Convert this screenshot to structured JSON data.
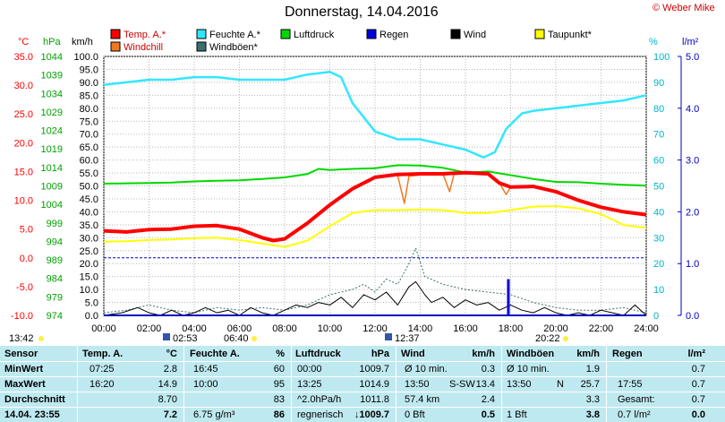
{
  "header": {
    "title": "Donnerstag, 14.04.2016",
    "copyright": "© Weber Mike"
  },
  "legend": [
    {
      "label": "Temp. A.*",
      "color": "#ff0000"
    },
    {
      "label": "Feuchte A.*",
      "color": "#33e6ff"
    },
    {
      "label": "Luftdruck",
      "color": "#00d800"
    },
    {
      "label": "Regen",
      "color": "#0000e0"
    },
    {
      "label": "Wind",
      "color": "#000000"
    },
    {
      "label": "Taupunkt*",
      "color": "#ffff00"
    },
    {
      "label": "Windchill",
      "color": "#f07820"
    },
    {
      "label": "Windböen*",
      "color": "#3c6e6e"
    }
  ],
  "axis_units": {
    "temp": "°C",
    "pressure": "hPa",
    "wind": "km/h",
    "humidity": "%",
    "rain": "l/m²"
  },
  "markers": {
    "sunrise_left": "13:42",
    "sun_t1": "02:53",
    "sun_t2": "06:40",
    "sun_t3": "12:37",
    "sun_t4": "20:22"
  },
  "chart_data": {
    "type": "line",
    "title": "Donnerstag, 14.04.2016",
    "x_unit": "hours",
    "xlim": [
      0,
      24
    ],
    "x_ticks": [
      "00:00",
      "02:00",
      "04:00",
      "06:00",
      "08:00",
      "10:00",
      "12:00",
      "14:00",
      "16:00",
      "18:00",
      "20:00",
      "22:00",
      "24:00"
    ],
    "axes": {
      "temp": {
        "label": "°C",
        "ylim": [
          -10,
          35
        ],
        "ticks": [
          "35.0",
          "30.0",
          "25.0",
          "20.0",
          "15.0",
          "10.0",
          "5.0",
          "0.0",
          "-5.0",
          "-10.0"
        ],
        "color": "#ff0000"
      },
      "pressure": {
        "label": "hPa",
        "ylim": [
          974,
          1044
        ],
        "ticks": [
          "1044",
          "1039",
          "1034",
          "1029",
          "1024",
          "1019",
          "1014",
          "1009",
          "1004",
          "999",
          "994",
          "989",
          "984",
          "979",
          "974"
        ],
        "color": "#00b000"
      },
      "wind": {
        "label": "km/h",
        "ylim": [
          0,
          100
        ],
        "ticks": [
          "100.0",
          "95.0",
          "90.0",
          "85.0",
          "80.0",
          "75.0",
          "70.0",
          "65.0",
          "60.0",
          "55.0",
          "50.0",
          "45.0",
          "40.0",
          "35.0",
          "30.0",
          "25.0",
          "20.0",
          "15.0",
          "10.0",
          "5.0",
          "0.0"
        ],
        "color": "#000000"
      },
      "humidity": {
        "label": "%",
        "ylim": [
          0,
          100
        ],
        "ticks": [
          "100",
          "90",
          "80",
          "70",
          "60",
          "50",
          "40",
          "30",
          "20",
          "10",
          "0"
        ],
        "color": "#00c8c8"
      },
      "rain": {
        "label": "l/m²",
        "ylim": [
          0,
          5
        ],
        "ticks": [
          "5.0",
          "4.0",
          "3.0",
          "2.0",
          "1.0",
          "0.0"
        ],
        "color": "#0000c0"
      }
    },
    "series": [
      {
        "name": "Temp. A.*",
        "axis": "temp",
        "color": "#ff0000",
        "x": [
          0,
          1,
          2,
          3,
          4,
          5,
          6,
          7,
          7.5,
          8,
          9,
          10,
          11,
          12,
          13,
          14,
          15,
          16,
          17,
          17.5,
          18,
          19,
          20,
          21,
          22,
          23,
          24
        ],
        "y": [
          4.7,
          4.5,
          4.9,
          5.0,
          5.5,
          5.6,
          5.0,
          3.5,
          3.0,
          3.3,
          6.0,
          9.2,
          12.0,
          14.0,
          14.5,
          14.6,
          14.6,
          14.8,
          14.6,
          13.0,
          12.3,
          12.4,
          11.5,
          10.0,
          8.8,
          8.0,
          7.5
        ]
      },
      {
        "name": "Feuchte A.*",
        "axis": "humidity",
        "color": "#33e6ff",
        "x": [
          0,
          1,
          2,
          3,
          4,
          5,
          6,
          7,
          8,
          9,
          10,
          10.5,
          11,
          12,
          13,
          14,
          15,
          16,
          16.8,
          17.3,
          17.8,
          18.5,
          19,
          20,
          21,
          22,
          23,
          24
        ],
        "y": [
          89,
          90,
          91,
          91,
          92,
          92,
          91,
          91,
          91,
          93,
          94,
          92,
          82,
          71,
          68,
          68,
          66,
          64,
          61,
          63,
          72,
          78,
          79,
          80,
          81,
          82,
          83,
          85
        ]
      },
      {
        "name": "Luftdruck",
        "axis": "pressure",
        "color": "#00d800",
        "x": [
          0,
          1,
          2,
          3,
          4,
          5,
          6,
          7,
          8,
          9,
          9.5,
          10,
          11,
          12,
          13,
          14,
          15,
          16,
          17,
          18,
          19,
          20,
          21,
          22,
          23,
          24
        ],
        "y": [
          1009.6,
          1009.7,
          1009.8,
          1009.9,
          1010.2,
          1010.4,
          1010.5,
          1010.9,
          1011.3,
          1012.2,
          1013.6,
          1013.3,
          1013.6,
          1013.8,
          1014.6,
          1014.5,
          1013.9,
          1012.6,
          1012.9,
          1011.9,
          1010.9,
          1010.1,
          1010.0,
          1009.6,
          1009.3,
          1009.1
        ]
      },
      {
        "name": "Taupunkt*",
        "axis": "temp",
        "color": "#ffff00",
        "x": [
          0,
          1,
          2,
          3,
          4,
          5,
          6,
          7,
          8,
          9,
          10,
          11,
          12,
          13,
          14,
          15,
          16,
          17,
          18,
          19,
          20,
          21,
          22,
          23,
          24
        ],
        "y": [
          2.8,
          2.9,
          3.1,
          3.2,
          3.4,
          3.5,
          3.1,
          2.5,
          1.9,
          3.0,
          5.5,
          7.8,
          8.3,
          8.3,
          8.4,
          8.3,
          7.8,
          7.8,
          8.3,
          8.9,
          9.0,
          8.6,
          7.6,
          5.7,
          5.2
        ]
      },
      {
        "name": "Windchill",
        "axis": "temp",
        "color": "#f07820",
        "x": [
          0,
          1,
          2,
          3,
          4,
          5,
          6,
          7,
          7.5,
          8,
          9,
          10,
          11,
          12,
          13,
          13.3,
          13.5,
          14,
          14.5,
          15,
          15.3,
          15.5,
          16,
          17,
          17.5,
          17.8,
          18,
          19,
          20,
          21,
          22,
          23,
          24
        ],
        "y": [
          4.7,
          4.5,
          4.9,
          5.0,
          5.5,
          5.6,
          5.0,
          3.5,
          3.0,
          3.3,
          6.0,
          9.2,
          12.0,
          14.0,
          14.3,
          9.5,
          14.2,
          14.4,
          14.5,
          14.6,
          11.5,
          14.6,
          14.7,
          14.6,
          13.0,
          11.0,
          12.3,
          12.4,
          11.5,
          10.0,
          8.8,
          8.0,
          7.5
        ]
      },
      {
        "name": "Wind",
        "axis": "wind",
        "color": "#000000",
        "x": [
          0,
          0.8,
          1.5,
          2,
          2.5,
          3,
          3.5,
          4,
          4.5,
          5,
          5.5,
          6,
          6.5,
          7,
          7.5,
          8,
          8.5,
          9,
          9.5,
          10,
          10.5,
          11,
          11.5,
          12,
          12.5,
          13,
          13.5,
          13.8,
          14.2,
          14.5,
          15,
          15.5,
          16,
          16.5,
          17,
          17.5,
          18,
          18.5,
          19,
          19.5,
          20,
          20.5,
          21,
          21.5,
          22,
          22.5,
          23,
          23.5,
          24
        ],
        "y": [
          0,
          1,
          3,
          1,
          0,
          2,
          0,
          1,
          3,
          1,
          2,
          0,
          3,
          1,
          0,
          2,
          4,
          3,
          5,
          4,
          7,
          3,
          8,
          6,
          9,
          4,
          11,
          13,
          8,
          5,
          7,
          3,
          6,
          4,
          5,
          2,
          4,
          2,
          1,
          3,
          1,
          0,
          1,
          0,
          2,
          1,
          0,
          4,
          0
        ]
      },
      {
        "name": "Windböen*",
        "axis": "wind",
        "color": "#3c6e6e",
        "x": [
          0,
          1,
          2,
          3,
          4,
          5,
          6,
          7,
          8,
          9,
          10,
          11,
          11.5,
          12,
          12.5,
          13,
          13.5,
          13.8,
          14.2,
          15,
          16,
          17,
          18,
          19,
          20,
          21,
          22,
          23,
          24
        ],
        "y": [
          1,
          2,
          4,
          2,
          1,
          3,
          2,
          3,
          2,
          4,
          8,
          10,
          12,
          9,
          14,
          12,
          20,
          26,
          15,
          12,
          10,
          9,
          8,
          5,
          3,
          2,
          2,
          3,
          1
        ]
      },
      {
        "name": "Regen",
        "axis": "rain",
        "color": "#0000e0",
        "kind": "bar",
        "x": [
          17.9
        ],
        "y": [
          0.7
        ]
      }
    ]
  },
  "stats": {
    "headers": {
      "sensor": "Sensor",
      "temp": "Temp. A.",
      "temp_unit": "°C",
      "hum": "Feuchte A.",
      "hum_unit": "%",
      "press": "Luftdruck",
      "press_unit": "hPa",
      "wind": "Wind",
      "wind_unit": "km/h",
      "gust": "Windböen",
      "gust_unit": "km/h",
      "rain": "Regen",
      "rain_unit": "l/m²"
    },
    "rows": [
      {
        "label": "MinWert",
        "temp_t": "07:25",
        "temp_v": "2.8",
        "hum_t": "16:45",
        "hum_v": "60",
        "press_t": "00:00",
        "press_v": "1009.7",
        "wind_t": "Ø 10 min.",
        "wind_v": "0.3",
        "gust_t": "Ø 10 min.",
        "gust_v": "1.9",
        "rain_t": "",
        "rain_v": "0.7"
      },
      {
        "label": "MaxWert",
        "temp_t": "16:20",
        "temp_v": "14.9",
        "hum_t": "10:00",
        "hum_v": "95",
        "press_t": "13:25",
        "press_v": "1014.9",
        "wind_t": "13:50",
        "wind_dir": "S-SW",
        "wind_v": "13.4",
        "gust_t": "13:50",
        "gust_dir": "N",
        "gust_v": "25.7",
        "rain_t": "17:55",
        "rain_v": "0.7"
      },
      {
        "label": "Durchschnitt",
        "temp_t": "",
        "temp_v": "8.70",
        "hum_t": "",
        "hum_v": "83",
        "press_t": "^2.0hPa/h",
        "press_v": "1011.8",
        "wind_t": "57.4 km",
        "wind_v": "2.4",
        "gust_t": "",
        "gust_v": "3.3",
        "rain_t": "Gesamt:",
        "rain_v": "0.7"
      },
      {
        "label": "14.04. 23:55",
        "temp_t": "",
        "temp_v": "7.2",
        "hum_t": "6.75 g/m³",
        "hum_v": "86",
        "press_t": "regnerisch",
        "press_v": "↓1009.7",
        "wind_t": "0 Bft",
        "wind_v": "0.5",
        "gust_t": "1 Bft",
        "gust_v": "3.8",
        "rain_t": "0.7 l/m²",
        "rain_v": "0.0"
      }
    ]
  }
}
